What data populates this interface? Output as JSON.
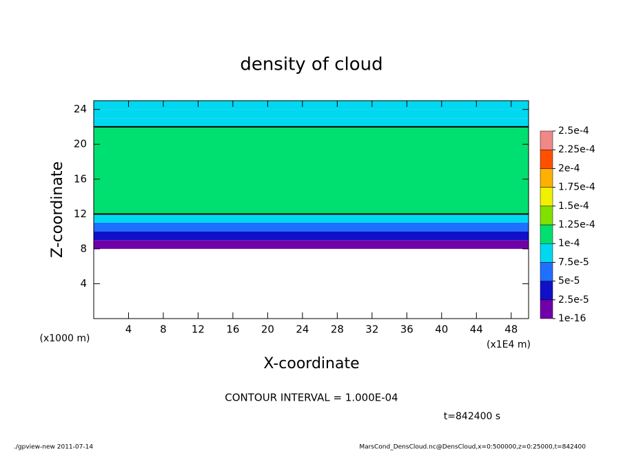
{
  "chart_data": {
    "type": "profile-heatmap",
    "title": "density of cloud",
    "x_label": "X-coordinate",
    "y_label": "Z-coordinate",
    "x_unit": "(x1E4 m)",
    "y_unit": "(x1000 m)",
    "annotation": "CONTOUR INTERVAL = 1.000E-04",
    "time_label": "t=842400 s",
    "footer_left": "./gpview-new  2011-07-14",
    "footer_right": "MarsCond_DensCloud.nc@DensCloud,x=0:500000,z=0:25000,t=842400",
    "xlim": [
      0,
      50
    ],
    "xticks": [
      4,
      8,
      12,
      16,
      20,
      24,
      28,
      32,
      36,
      40,
      44,
      48
    ],
    "ylim": [
      0,
      25
    ],
    "yticks": [
      4,
      8,
      12,
      16,
      20,
      24
    ],
    "z_edges": [
      8,
      9,
      10,
      11,
      12,
      22,
      23,
      24,
      25
    ],
    "values": [
      1e-05,
      4e-05,
      7e-05,
      9e-05,
      0.00011,
      9e-05,
      8e-05,
      7.5e-05
    ],
    "levels": [
      {
        "value": 1e-16,
        "label": "1e-16"
      },
      {
        "value": 2.5e-05,
        "label": "2.5e-5"
      },
      {
        "value": 5e-05,
        "label": "5e-5"
      },
      {
        "value": 7.5e-05,
        "label": "7.5e-5"
      },
      {
        "value": 0.0001,
        "label": "1e-4"
      },
      {
        "value": 0.000125,
        "label": "1.25e-4"
      },
      {
        "value": 0.00015,
        "label": "1.5e-4"
      },
      {
        "value": 0.000175,
        "label": "1.75e-4"
      },
      {
        "value": 0.0002,
        "label": "2e-4"
      },
      {
        "value": 0.000225,
        "label": "2.25e-4"
      },
      {
        "value": 0.00025,
        "label": "2.5e-4"
      }
    ],
    "colors": [
      "#7000a8",
      "#1010c8",
      "#2070ff",
      "#00d8f0",
      "#00e070",
      "#80e000",
      "#f0f000",
      "#ffb000",
      "#ff5000",
      "#f08888"
    ]
  }
}
